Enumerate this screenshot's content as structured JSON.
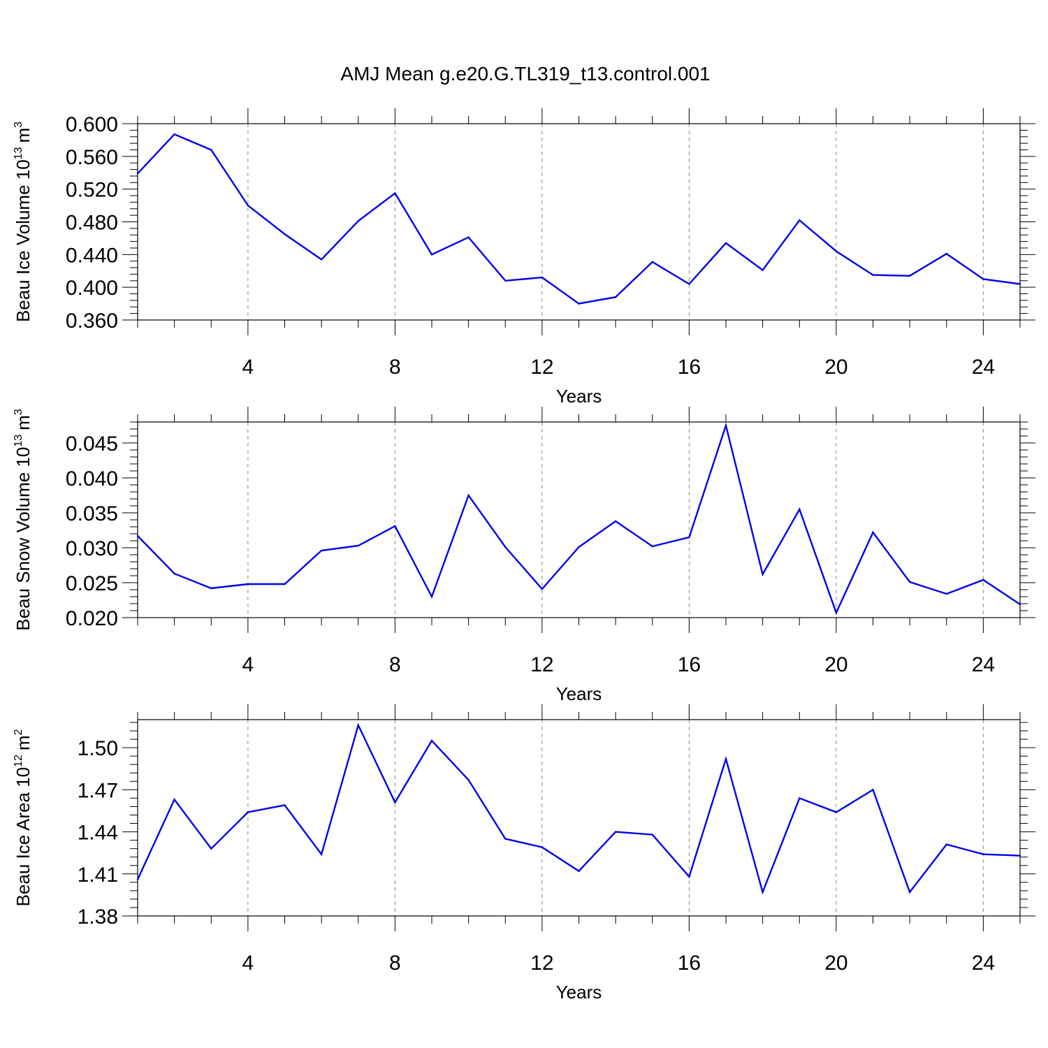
{
  "title": "AMJ Mean g.e20.G.TL319_t13.control.001",
  "colors": {
    "line": "#0000ee",
    "axis": "#000000",
    "grid": "#888888"
  },
  "chart_data": [
    {
      "type": "line",
      "ylabel_main": "Beau Ice Volume 10",
      "ylabel_exp": "13",
      "ylabel_unit": "m",
      "ylabel_unit_exp": "3",
      "xlabel": "Years",
      "xlim": [
        1,
        25
      ],
      "ylim": [
        0.36,
        0.6
      ],
      "xticks": [
        4,
        8,
        12,
        16,
        20,
        24
      ],
      "xtick_labels": [
        "4",
        "8",
        "12",
        "16",
        "20",
        "24"
      ],
      "yticks": [
        0.36,
        0.4,
        0.44,
        0.48,
        0.52,
        0.56,
        0.6
      ],
      "ytick_labels": [
        "0.360",
        "0.400",
        "0.440",
        "0.480",
        "0.520",
        "0.560",
        "0.600"
      ],
      "x": [
        1,
        2,
        3,
        4,
        5,
        6,
        7,
        8,
        9,
        10,
        11,
        12,
        13,
        14,
        15,
        16,
        17,
        18,
        19,
        20,
        21,
        22,
        23,
        24,
        25
      ],
      "values": [
        0.539,
        0.587,
        0.568,
        0.5,
        0.465,
        0.434,
        0.481,
        0.515,
        0.44,
        0.461,
        0.408,
        0.412,
        0.38,
        0.388,
        0.431,
        0.404,
        0.454,
        0.421,
        0.482,
        0.444,
        0.415,
        0.414,
        0.441,
        0.41,
        0.404
      ]
    },
    {
      "type": "line",
      "ylabel_main": "Beau Snow Volume 10",
      "ylabel_exp": "13",
      "ylabel_unit": "m",
      "ylabel_unit_exp": "3",
      "xlabel": "Years",
      "xlim": [
        1,
        25
      ],
      "ylim": [
        0.02,
        0.048
      ],
      "xticks": [
        4,
        8,
        12,
        16,
        20,
        24
      ],
      "xtick_labels": [
        "4",
        "8",
        "12",
        "16",
        "20",
        "24"
      ],
      "yticks": [
        0.02,
        0.025,
        0.03,
        0.035,
        0.04,
        0.045
      ],
      "ytick_labels": [
        "0.020",
        "0.025",
        "0.030",
        "0.035",
        "0.040",
        "0.045"
      ],
      "x": [
        1,
        2,
        3,
        4,
        5,
        6,
        7,
        8,
        9,
        10,
        11,
        12,
        13,
        14,
        15,
        16,
        17,
        18,
        19,
        20,
        21,
        22,
        23,
        24,
        25
      ],
      "values": [
        0.0317,
        0.0263,
        0.0242,
        0.0248,
        0.0248,
        0.0296,
        0.0303,
        0.0331,
        0.023,
        0.0375,
        0.0301,
        0.0241,
        0.0301,
        0.0338,
        0.0302,
        0.0315,
        0.0475,
        0.0262,
        0.0355,
        0.0207,
        0.0322,
        0.0251,
        0.0234,
        0.0254,
        0.0219
      ]
    },
    {
      "type": "line",
      "ylabel_main": "Beau Ice Area 10",
      "ylabel_exp": "12",
      "ylabel_unit": "m",
      "ylabel_unit_exp": "2",
      "xlabel": "Years",
      "xlim": [
        1,
        25
      ],
      "ylim": [
        1.38,
        1.52
      ],
      "xticks": [
        4,
        8,
        12,
        16,
        20,
        24
      ],
      "xtick_labels": [
        "4",
        "8",
        "12",
        "16",
        "20",
        "24"
      ],
      "yticks": [
        1.38,
        1.41,
        1.44,
        1.47,
        1.5
      ],
      "ytick_labels": [
        "1.38",
        "1.41",
        "1.44",
        "1.47",
        "1.50"
      ],
      "x": [
        1,
        2,
        3,
        4,
        5,
        6,
        7,
        8,
        9,
        10,
        11,
        12,
        13,
        14,
        15,
        16,
        17,
        18,
        19,
        20,
        21,
        22,
        23,
        24,
        25
      ],
      "values": [
        1.406,
        1.463,
        1.428,
        1.454,
        1.459,
        1.424,
        1.516,
        1.461,
        1.505,
        1.477,
        1.435,
        1.429,
        1.412,
        1.44,
        1.438,
        1.408,
        1.492,
        1.397,
        1.464,
        1.454,
        1.47,
        1.397,
        1.431,
        1.424,
        1.423
      ]
    }
  ]
}
